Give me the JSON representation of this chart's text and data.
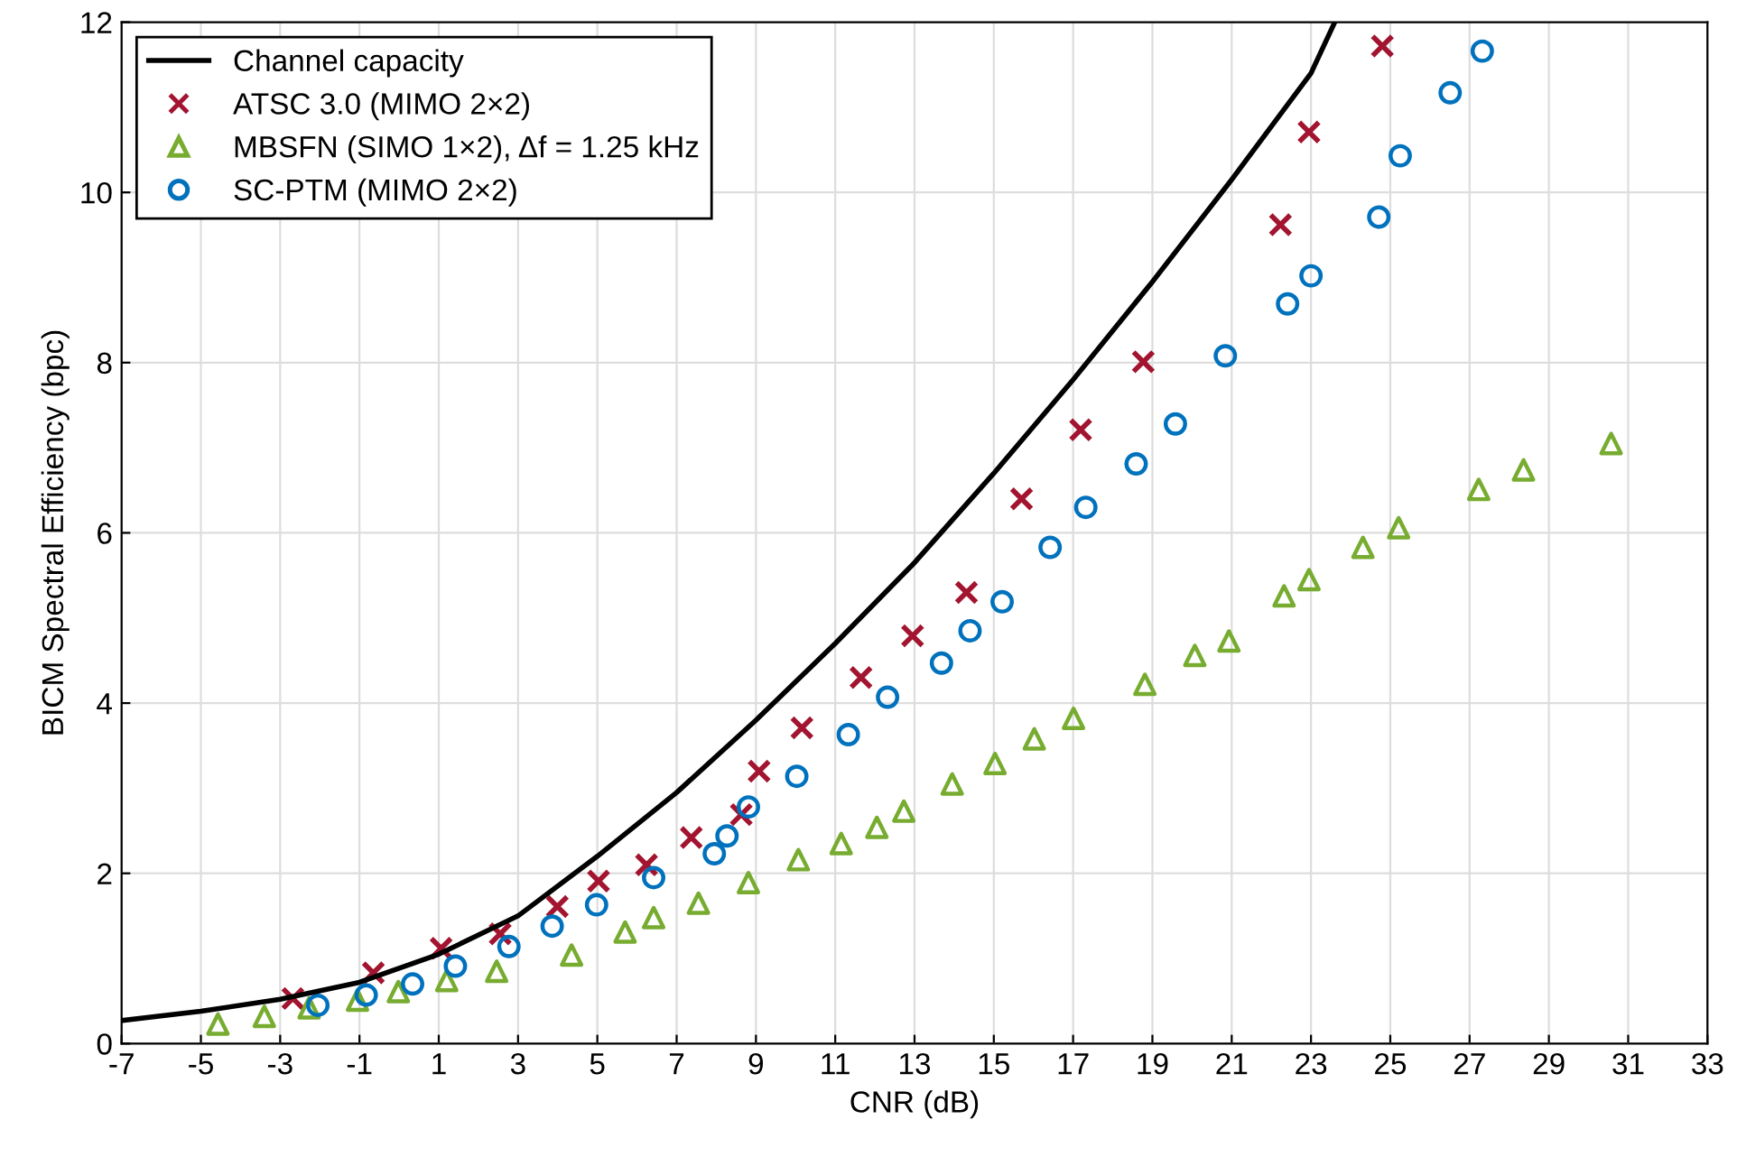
{
  "chart_data": {
    "type": "scatter",
    "xlabel": "CNR (dB)",
    "ylabel": "BICM Spectral Efficiency (bpc)",
    "xlim": [
      -7,
      33
    ],
    "xticks": [
      -7,
      -5,
      -3,
      -1,
      1,
      3,
      5,
      7,
      9,
      11,
      13,
      15,
      17,
      19,
      21,
      23,
      25,
      27,
      29,
      31,
      33
    ],
    "ylim": [
      0,
      12
    ],
    "yticks": [
      0,
      2,
      4,
      6,
      8,
      10,
      12
    ],
    "grid": true,
    "legend": "top left",
    "series": [
      {
        "name": "Channel capacity",
        "type": "line",
        "color": "#000000",
        "marker": "none",
        "x": [
          -7,
          -5,
          -3,
          -1,
          1,
          3,
          5,
          7,
          9,
          11,
          13,
          15,
          17,
          19,
          21,
          23,
          23.6
        ],
        "values": [
          0.27,
          0.38,
          0.52,
          0.72,
          1.05,
          1.5,
          2.2,
          2.95,
          3.8,
          4.7,
          5.65,
          6.7,
          7.8,
          8.95,
          10.15,
          11.4,
          12
        ]
      },
      {
        "name": "ATSC 3.0 (MIMO 2×2)",
        "color": "#a2142f",
        "marker": "cross",
        "x": [
          -2.68,
          -0.65,
          1.06,
          2.55,
          3.99,
          5.03,
          6.24,
          7.37,
          8.63,
          9.08,
          10.16,
          11.65,
          12.95,
          14.31,
          15.7,
          17.19,
          18.77,
          22.23,
          22.95,
          24.8
        ],
        "values": [
          0.53,
          0.83,
          1.12,
          1.29,
          1.61,
          1.91,
          2.1,
          2.42,
          2.69,
          3.2,
          3.71,
          4.3,
          4.79,
          5.3,
          6.4,
          7.21,
          8.01,
          9.62,
          10.71,
          11.72
        ]
      },
      {
        "name": "MBSFN (SIMO 1×2), Δf = 1.25 kHz",
        "color": "#77ac30",
        "marker": "triangle",
        "x": [
          -4.57,
          -3.4,
          -2.27,
          -1.05,
          -0.02,
          1.2,
          2.46,
          4.35,
          5.7,
          6.42,
          7.55,
          8.81,
          10.07,
          11.15,
          12.05,
          12.73,
          13.95,
          15.03,
          16.02,
          17.01,
          18.81,
          20.07,
          20.93,
          22.32,
          22.95,
          24.31,
          25.21,
          27.23,
          28.36,
          30.57
        ],
        "values": [
          0.23,
          0.32,
          0.42,
          0.51,
          0.61,
          0.74,
          0.85,
          1.04,
          1.31,
          1.48,
          1.65,
          1.89,
          2.16,
          2.35,
          2.54,
          2.73,
          3.05,
          3.29,
          3.58,
          3.82,
          4.22,
          4.56,
          4.73,
          5.26,
          5.45,
          5.83,
          6.06,
          6.51,
          6.74,
          7.05
        ]
      },
      {
        "name": "SC-PTM (MIMO 2×2)",
        "color": "#0072bd",
        "marker": "circle",
        "x": [
          -2.05,
          -0.83,
          0.34,
          1.42,
          2.77,
          3.86,
          4.98,
          6.42,
          7.95,
          8.27,
          8.81,
          10.03,
          11.33,
          12.32,
          13.68,
          14.4,
          15.21,
          16.42,
          17.32,
          18.59,
          19.58,
          20.84,
          22.41,
          23.0,
          24.71,
          25.25,
          26.51,
          27.32
        ],
        "values": [
          0.45,
          0.57,
          0.7,
          0.91,
          1.14,
          1.38,
          1.63,
          1.95,
          2.23,
          2.44,
          2.78,
          3.14,
          3.63,
          4.07,
          4.47,
          4.85,
          5.19,
          5.83,
          6.3,
          6.81,
          7.28,
          8.08,
          8.69,
          9.02,
          9.71,
          10.43,
          11.17,
          11.66
        ]
      }
    ]
  }
}
